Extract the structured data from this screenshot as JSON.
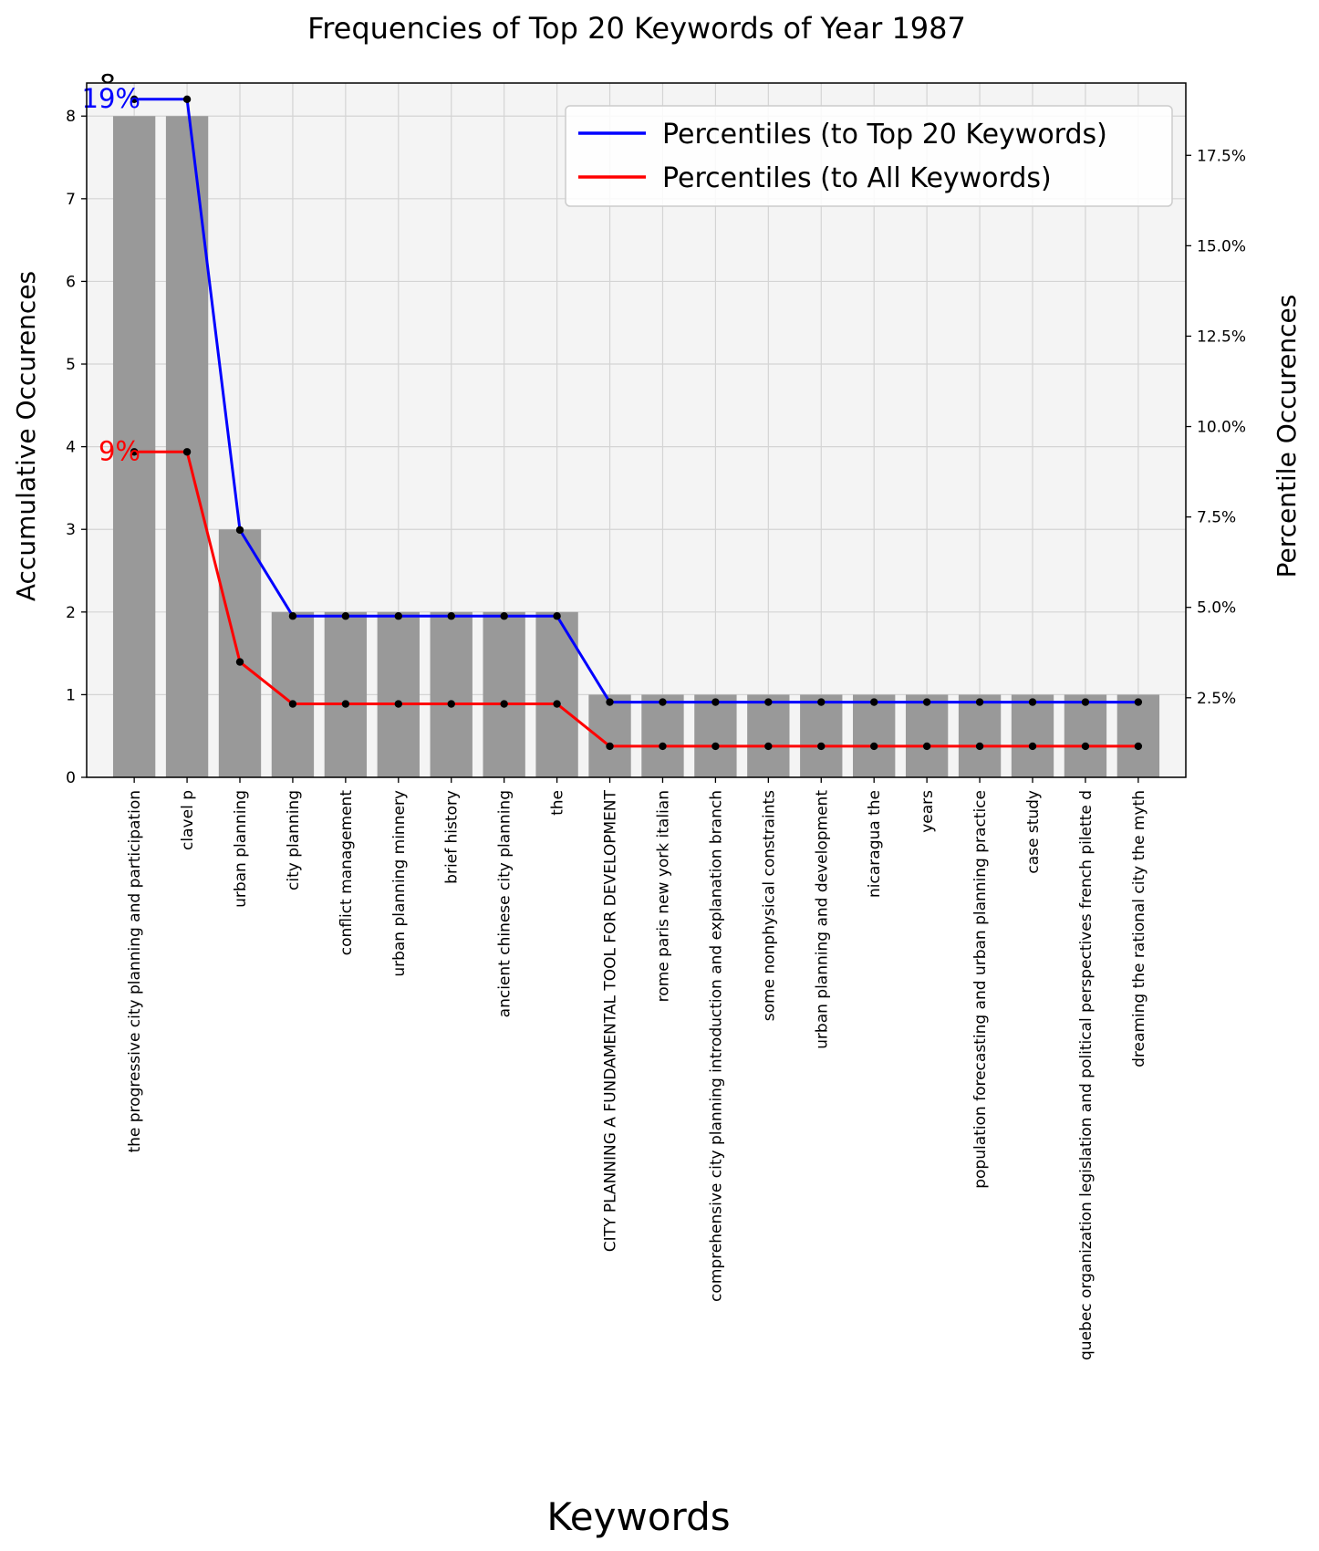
{
  "chart_data": {
    "type": "bar",
    "title": "Frequencies of Top 20 Keywords of Year 1987",
    "xlabel": "Keywords",
    "ylabel": "Accumulative Occurences",
    "y2label": "Percentile Occurences",
    "top_value_label": "8",
    "categories": [
      "the progressive city planning and participation",
      "clavel p",
      "urban planning",
      "city planning",
      "conflict management",
      "urban planning minnery",
      "brief history",
      "ancient chinese city planning",
      "the",
      "CITY PLANNING A FUNDAMENTAL TOOL FOR DEVELOPMENT",
      "rome paris new york italian",
      "comprehensive city planning introduction and explanation branch",
      "some nonphysical constraints",
      "urban planning and development",
      "nicaragua the",
      "years",
      "population forecasting and urban planning practice",
      "case study",
      "quebec organization legislation and political perspectives french pilette d",
      "dreaming the rational city the myth"
    ],
    "values": [
      8,
      8,
      3,
      2,
      2,
      2,
      2,
      2,
      2,
      1,
      1,
      1,
      1,
      1,
      1,
      1,
      1,
      1,
      1,
      1
    ],
    "ylim": [
      0,
      8.4
    ],
    "y_ticks": [
      "0",
      "1",
      "2",
      "3",
      "4",
      "5",
      "6",
      "7",
      "8"
    ],
    "y2lim": [
      0.3,
      19.5
    ],
    "y2_ticks": [
      "2.5%",
      "5.0%",
      "7.5%",
      "10.0%",
      "12.5%",
      "15.0%",
      "17.5%"
    ],
    "y2_tick_values": [
      2.5,
      5.0,
      7.5,
      10.0,
      12.5,
      15.0,
      17.5
    ],
    "series": [
      {
        "name": "Percentiles (to Top 20 Keywords)",
        "color": "#0000ff",
        "values": [
          19.05,
          19.05,
          7.14,
          4.76,
          4.76,
          4.76,
          4.76,
          4.76,
          4.76,
          2.38,
          2.38,
          2.38,
          2.38,
          2.38,
          2.38,
          2.38,
          2.38,
          2.38,
          2.38,
          2.38
        ],
        "first_label": "19%"
      },
      {
        "name": "Percentiles (to All Keywords)",
        "color": "#ff0000",
        "values": [
          9.3,
          9.3,
          3.49,
          2.33,
          2.33,
          2.33,
          2.33,
          2.33,
          2.33,
          1.16,
          1.16,
          1.16,
          1.16,
          1.16,
          1.16,
          1.16,
          1.16,
          1.16,
          1.16,
          1.16
        ],
        "first_label": "9%"
      }
    ],
    "bar_color": "#999999",
    "plot_background": "#f4f4f4",
    "grid": true,
    "legend_position": "top-right"
  }
}
